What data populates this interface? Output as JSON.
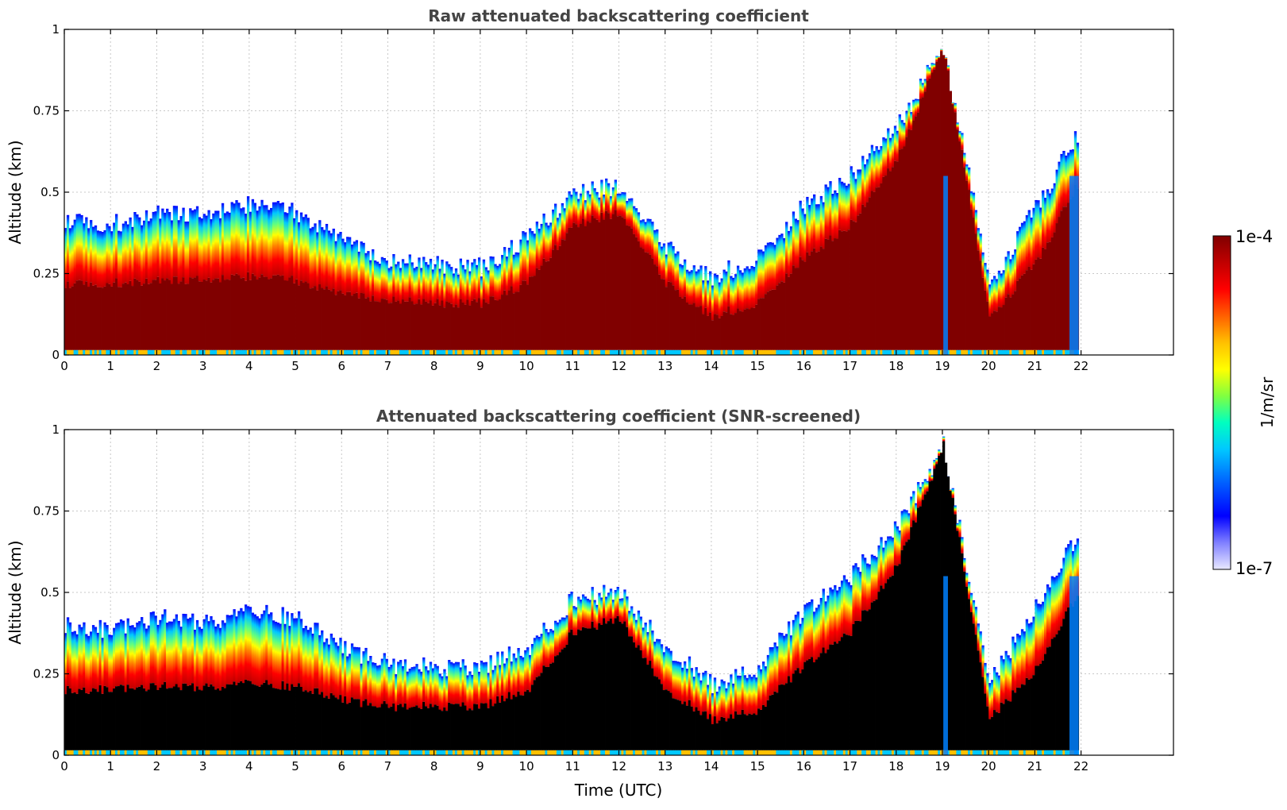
{
  "chart_data": [
    {
      "type": "heatmap",
      "title": "Raw attenuated backscattering coefficient",
      "xlabel": "",
      "ylabel": "Altitude (km)",
      "xlim": [
        0,
        24
      ],
      "ylim": [
        0,
        1
      ],
      "x_ticks": [
        0,
        1,
        2,
        3,
        4,
        5,
        6,
        7,
        8,
        9,
        10,
        11,
        12,
        13,
        14,
        15,
        16,
        17,
        18,
        19,
        20,
        21,
        22
      ],
      "x_tick_labels": [
        "0",
        "1",
        "2",
        "3",
        "4",
        "5",
        "6",
        "7",
        "8",
        "9",
        "10",
        "11",
        "12",
        "13",
        "14",
        "15",
        "16",
        "17",
        "18",
        "19",
        "20",
        "21",
        "22"
      ],
      "y_ticks": [
        0,
        0.25,
        0.5,
        0.75,
        1
      ],
      "y_tick_labels": [
        "0",
        "0.25",
        "0.5",
        "0.75",
        "1"
      ],
      "grid": true,
      "data_end_hour": 21.95,
      "layer_top_km": [
        0.42,
        0.4,
        0.44,
        0.43,
        0.46,
        0.44,
        0.36,
        0.29,
        0.28,
        0.27,
        0.36,
        0.5,
        0.52,
        0.33,
        0.24,
        0.3,
        0.46,
        0.55,
        0.7,
        0.95,
        0.22,
        0.45,
        0.7
      ],
      "saturated_top_km": [
        0.22,
        0.22,
        0.23,
        0.23,
        0.24,
        0.23,
        0.19,
        0.17,
        0.16,
        0.16,
        0.22,
        0.4,
        0.44,
        0.22,
        0.12,
        0.16,
        0.3,
        0.4,
        0.6,
        0.95,
        0.12,
        0.28,
        0.55
      ]
    },
    {
      "type": "heatmap",
      "title": "Attenuated backscattering coefficient (SNR-screened)",
      "xlabel": "Time (UTC)",
      "ylabel": "Altitude (km)",
      "xlim": [
        0,
        24
      ],
      "ylim": [
        0,
        1
      ],
      "x_ticks": [
        0,
        1,
        2,
        3,
        4,
        5,
        6,
        7,
        8,
        9,
        10,
        11,
        12,
        13,
        14,
        15,
        16,
        17,
        18,
        19,
        20,
        21,
        22
      ],
      "x_tick_labels": [
        "0",
        "1",
        "2",
        "3",
        "4",
        "5",
        "6",
        "7",
        "8",
        "9",
        "10",
        "11",
        "12",
        "13",
        "14",
        "15",
        "16",
        "17",
        "18",
        "19",
        "20",
        "21",
        "22"
      ],
      "y_ticks": [
        0,
        0.25,
        0.5,
        0.75,
        1
      ],
      "y_tick_labels": [
        "0",
        "0.25",
        "0.5",
        "0.75",
        "1"
      ],
      "grid": true,
      "data_end_hour": 21.95,
      "layer_top_km": [
        0.4,
        0.38,
        0.42,
        0.41,
        0.44,
        0.42,
        0.33,
        0.28,
        0.27,
        0.27,
        0.33,
        0.48,
        0.5,
        0.33,
        0.22,
        0.27,
        0.45,
        0.55,
        0.7,
        0.95,
        0.22,
        0.45,
        0.7
      ],
      "saturated_top_km": [
        0.2,
        0.2,
        0.21,
        0.21,
        0.22,
        0.21,
        0.17,
        0.15,
        0.15,
        0.15,
        0.2,
        0.38,
        0.42,
        0.2,
        0.11,
        0.14,
        0.28,
        0.38,
        0.58,
        0.95,
        0.11,
        0.26,
        0.52
      ]
    }
  ],
  "colorbar": {
    "label": "1/m/sr",
    "max_label": "1e-4",
    "min_label": "1e-7",
    "scale": "log",
    "range": [
      1e-07,
      0.0001
    ],
    "colormap": [
      "#e8e8ff",
      "#8080ff",
      "#0000ff",
      "#0060ff",
      "#00c8ff",
      "#00ffc0",
      "#80ff40",
      "#ffff00",
      "#ffc000",
      "#ff6000",
      "#ff0000",
      "#c00000",
      "#800000"
    ]
  }
}
